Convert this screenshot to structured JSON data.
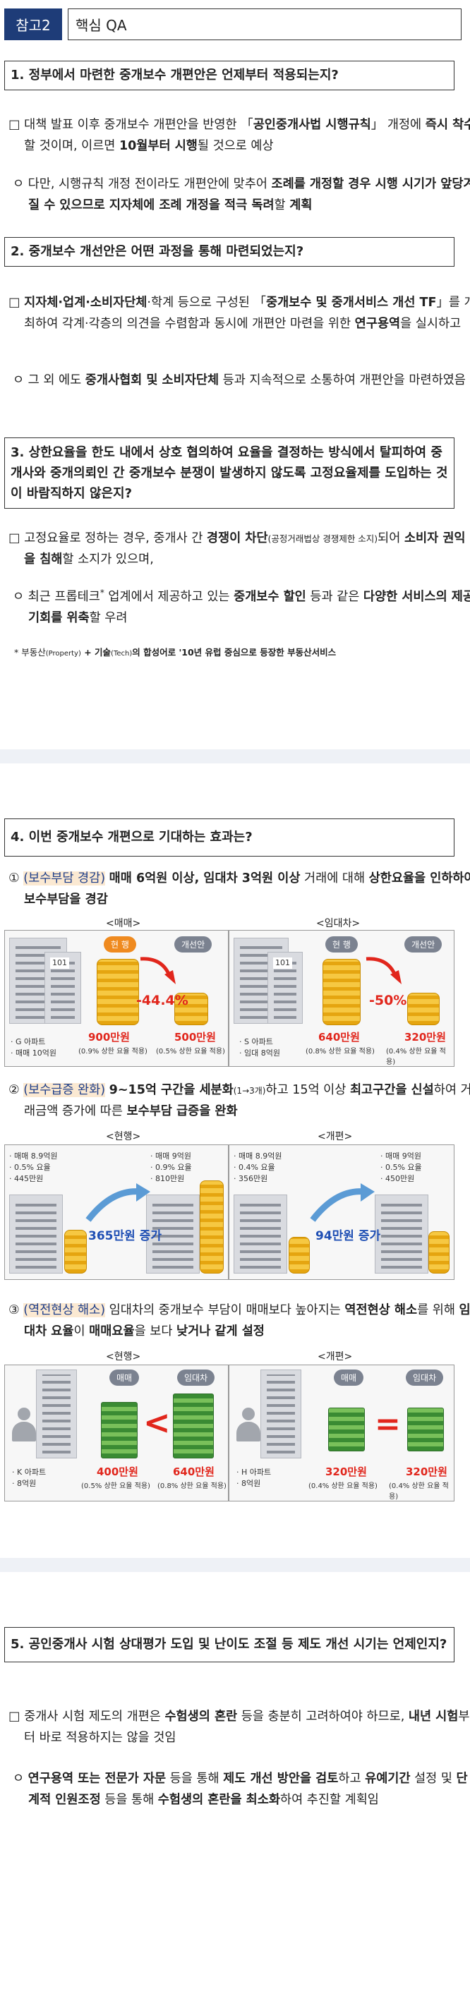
{
  "header": {
    "tag": "참고2",
    "title": "핵심 QA"
  },
  "q1": {
    "question": "1. 정부에서 마련한 중개보수 개편안은 언제부터 적용되는지?",
    "a1": [
      "□ 대책 발표 이후 중개보수 개편안을 반영한 「",
      "공인중개사법 시행규칙",
      "」 개정에 ",
      "즉시 착수",
      "할 것이며, 이르면 ",
      "10월부터 시행",
      "될 것으로 예상"
    ],
    "a2": [
      "ㅇ 다만, 시행규칙 개정 전이라도 개편안에 맞추어 ",
      "조례를 개정할 경우 시행 시기가 앞당겨질 수 있으므로 지자체에 조례 개정을 적극 독려",
      "할 ",
      "계획"
    ]
  },
  "q2": {
    "question": "2. 중개보수 개선안은 어떤 과정을 통해 마련되었는지?",
    "a1": [
      "□ ",
      "지자체·업계·소비자단체",
      "·학계 등으로 구성된 「",
      "중개보수 및 중개서비스 개선 TF",
      "」를 개최하여 각계·각층의 의견을 수렴함과 동시에 개편안 마련을 위한 ",
      "연구용역",
      "을 실시하고"
    ],
    "a2": [
      "ㅇ 그 외 에도 ",
      "중개사협회 및 소비자단체",
      " 등과 지속적으로 소통하여 개편안을 마련하였음"
    ]
  },
  "q3": {
    "question": "3. 상한요율을 한도 내에서 상호 협의하여 요율을 결정하는 방식에서 탈피하여 중개사와 중개의뢰인 간 중개보수 분쟁이 발생하지 않도록 고정요율제를 도입하는 것이 바람직하지 않은지?",
    "a1": [
      "□ 고정요율로 정하는 경우, 중개사 간 ",
      "경쟁이 차단",
      "(공정거래법상 경쟁제한 소지)",
      "되어 ",
      "소비자 권익을 침해",
      "할 소지가 있으며,"
    ],
    "a2": [
      "ㅇ 최근 프롭테크",
      "*",
      " 업계에서 제공하고 있는 ",
      "중개보수 할인",
      " 등과 같은 ",
      "다양한 서비스의 제공 기회를 위축",
      "할 우려"
    ],
    "footnote": [
      "* 부동산",
      "(Property)",
      " + 기술",
      "(Tech)",
      "의 합성어로 '10년 유럽 중심으로 등장한 부동산서비스"
    ]
  },
  "q4": {
    "question": "4. 이번 중개보수 개편으로 기대하는 효과는?",
    "e1": [
      "① ",
      "(보수부담 경감)",
      " ",
      "매매 6억원 이상, 임대차 3억원 이상",
      " 거래에 대해 ",
      "상한요율을 인하하여 보수부담을 경감"
    ],
    "e2": [
      "② ",
      "(보수급증 완화)",
      " ",
      "9~15억 구간을 세분화",
      "(1→3개)",
      "하고 15억 이상 ",
      "최고구간을 신설",
      "하여 거래금액 증가에 따른 ",
      "보수부담 급증을 완화"
    ],
    "e3": [
      "③ ",
      "(역전현상 해소)",
      " 임대차의 중개보수 부담이 매매보다 높아지는 ",
      "역전현상 해소",
      "를 위해 ",
      "임대차 요율",
      "이 ",
      "매매요율",
      "을 보다 ",
      "낮거나 같게 설정"
    ]
  },
  "fig1": {
    "left": {
      "label": "<매매>",
      "bld_sign": "101",
      "pill_cur": "현 행",
      "pill_new": "개선안",
      "info": [
        "· G 아파트",
        "· 매매 10억원"
      ],
      "cur_amt": "900만원",
      "cur_note": "(0.9% 상한 요율 적용)",
      "new_amt": "500만원",
      "new_note": "(0.5% 상한 요율 적용)",
      "pct": "-44.4%"
    },
    "right": {
      "label": "<임대차>",
      "bld_sign": "101",
      "pill_cur": "현 행",
      "pill_new": "개선안",
      "info": [
        "· S 아파트",
        "· 임대 8억원"
      ],
      "cur_amt": "640만원",
      "cur_note": "(0.8% 상한 요율 적용)",
      "new_amt": "320만원",
      "new_note": "(0.4% 상한 요율 적용)",
      "pct": "-50%"
    }
  },
  "fig2": {
    "left": {
      "label": "<현행>",
      "info1": [
        "· 매매 8.9억원",
        "· 0.5% 요율",
        "· 445만원"
      ],
      "info2": [
        "· 매매 9억원",
        "· 0.9% 요율",
        "· 810만원"
      ],
      "inc": "365만원 증가"
    },
    "right": {
      "label": "<개편>",
      "info1": [
        "· 매매 8.9억원",
        "· 0.4% 요율",
        "· 356만원"
      ],
      "info2": [
        "· 매매 9억원",
        "· 0.5% 요율",
        "· 450만원"
      ],
      "inc": "94만원 증가"
    }
  },
  "fig3": {
    "left": {
      "label": "<현행>",
      "pill_a": "매매",
      "pill_b": "임대차",
      "sym": "<",
      "info": [
        "· K 아파트",
        "· 8억원"
      ],
      "amt_a": "400만원",
      "note_a": "(0.5% 상한 요율 적용)",
      "amt_b": "640만원",
      "note_b": "(0.8% 상한 요율 적용)"
    },
    "right": {
      "label": "<개편>",
      "pill_a": "매매",
      "pill_b": "임대차",
      "sym": "=",
      "info": [
        "· H 아파트",
        "· 8억원"
      ],
      "amt_a": "320만원",
      "note_a": "(0.4% 상한 요율 적용)",
      "amt_b": "320만원",
      "note_b": "(0.4% 상한 요율 적용)"
    }
  },
  "q5": {
    "question": "5. 공인중개사 시험 상대평가 도입 및 난이도 조절 등 제도 개선 시기는 언제인지?",
    "a1": [
      "□ 중개사 시험 제도의 개편은 ",
      "수험생의 혼란",
      " 등을 충분히 고려하여야 하므로, ",
      "내년 시험",
      "부터 바로 적용하지는 않을 것임"
    ],
    "a2": [
      "ㅇ ",
      "연구용역 또는 전문가 자문",
      " 등을 통해 ",
      "제도 개선 방안을 검토",
      "하고 ",
      "유예기간",
      " 설정 및 ",
      "단계적 인원조정",
      " 등을 통해 ",
      "수험생의 혼란을 최소화",
      "하여 추진할 계획임"
    ]
  },
  "colors": {
    "header_tag": "#1e3c78",
    "highlight_bg": "#fbe9d2",
    "highlight_text": "#1f3f8a",
    "accent_red": "#e1261c",
    "accent_blue": "#1f4fb4",
    "coin": "#f0b429",
    "cash": "#3a8b33"
  }
}
